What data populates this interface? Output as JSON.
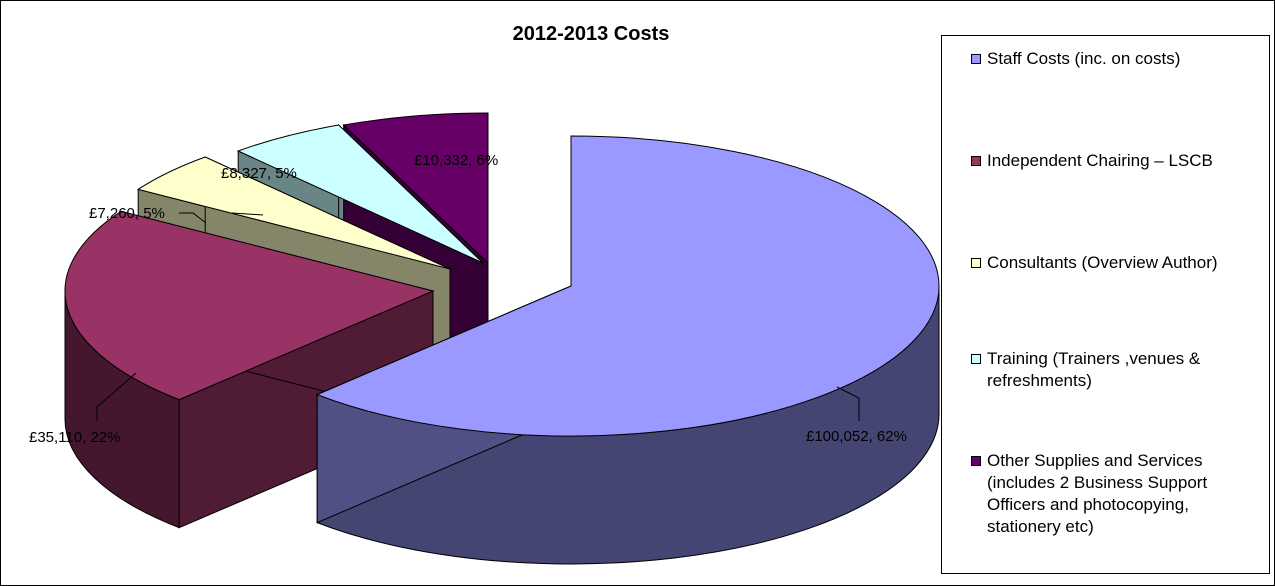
{
  "chart_data": {
    "type": "pie",
    "title": "2012-2013 Costs",
    "categories": [
      "Staff Costs (inc. on costs)",
      "Independent Chairing – LSCB",
      "Consultants (Overview Author)",
      "Training (Trainers ,venues & refreshments)",
      "Other Supplies and Services (includes 2 Business Support Officers and photocopying, stationery etc)"
    ],
    "values": [
      100052,
      35110,
      7260,
      8327,
      10332
    ],
    "data_labels": [
      "£100,052, 62%",
      "£35,110, 22%",
      "£7,260, 5%",
      "£8,327, 5%",
      "£10,332, 6%"
    ],
    "colors": [
      "#9999FF",
      "#993366",
      "#FFFFCC",
      "#CCFFFF",
      "#660066"
    ],
    "style": "3d-exploded",
    "legend_position": "right",
    "grid": false
  }
}
